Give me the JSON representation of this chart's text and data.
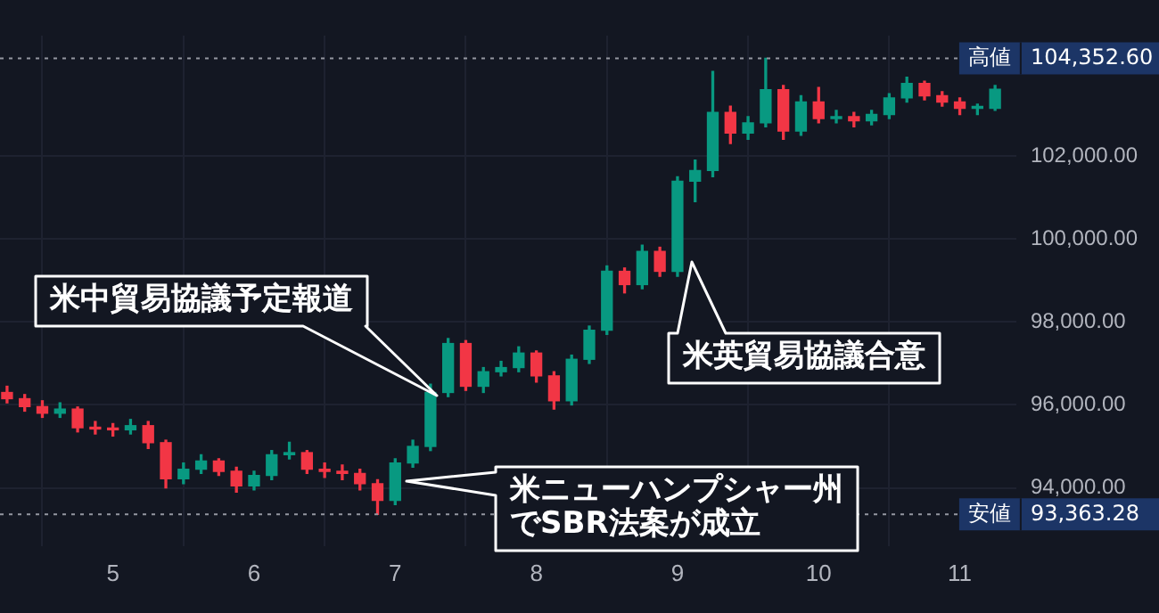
{
  "chart_data": {
    "type": "candlestick",
    "x": [
      4.25,
      4.375,
      4.5,
      4.625,
      4.75,
      4.875,
      5,
      5.125,
      5.25,
      5.375,
      5.5,
      5.625,
      5.75,
      5.875,
      6,
      6.125,
      6.25,
      6.375,
      6.5,
      6.625,
      6.75,
      6.875,
      7,
      7.125,
      7.25,
      7.375,
      7.5,
      7.625,
      7.75,
      7.875,
      8,
      8.125,
      8.25,
      8.375,
      8.5,
      8.625,
      8.75,
      8.875,
      9,
      9.125,
      9.25,
      9.375,
      9.5,
      9.625,
      9.75,
      9.875,
      10,
      10.125,
      10.25,
      10.375,
      10.5,
      10.625,
      10.75,
      10.875,
      11,
      11.125,
      11.25
    ],
    "ohlc": [
      [
        96300,
        96450,
        96050,
        96150
      ],
      [
        96150,
        96250,
        95850,
        95960
      ],
      [
        95960,
        96100,
        95700,
        95800
      ],
      [
        95800,
        96050,
        95700,
        95900
      ],
      [
        95900,
        95950,
        95350,
        95450
      ],
      [
        95450,
        95600,
        95300,
        95420
      ],
      [
        95420,
        95550,
        95250,
        95400
      ],
      [
        95400,
        95650,
        95300,
        95500
      ],
      [
        95500,
        95600,
        94950,
        95090
      ],
      [
        95090,
        95150,
        94000,
        94220
      ],
      [
        94220,
        94600,
        94100,
        94450
      ],
      [
        94450,
        94800,
        94350,
        94650
      ],
      [
        94650,
        94700,
        94300,
        94400
      ],
      [
        94400,
        94500,
        93900,
        94050
      ],
      [
        94050,
        94400,
        93950,
        94300
      ],
      [
        94300,
        94900,
        94200,
        94800
      ],
      [
        94800,
        95100,
        94700,
        94850
      ],
      [
        94850,
        94900,
        94350,
        94450
      ],
      [
        94450,
        94600,
        94250,
        94400
      ],
      [
        94400,
        94550,
        94200,
        94350
      ],
      [
        94350,
        94450,
        93950,
        94100
      ],
      [
        94100,
        94200,
        93363.28,
        93700
      ],
      [
        93700,
        94700,
        93600,
        94600
      ],
      [
        94600,
        95150,
        94500,
        95000
      ],
      [
        95000,
        96500,
        94900,
        96300
      ],
      [
        96300,
        97600,
        96200,
        97480
      ],
      [
        97480,
        97550,
        96350,
        96450
      ],
      [
        96450,
        96900,
        96300,
        96800
      ],
      [
        96800,
        97050,
        96700,
        96900
      ],
      [
        96900,
        97400,
        96800,
        97250
      ],
      [
        97250,
        97300,
        96550,
        96700
      ],
      [
        96700,
        96800,
        95900,
        96100
      ],
      [
        96100,
        97200,
        96000,
        97100
      ],
      [
        97100,
        97900,
        97000,
        97800
      ],
      [
        97800,
        99350,
        97700,
        99220
      ],
      [
        99220,
        99300,
        98700,
        98900
      ],
      [
        98900,
        99850,
        98800,
        99700
      ],
      [
        99700,
        99800,
        99100,
        99220
      ],
      [
        99220,
        101500,
        99100,
        101390
      ],
      [
        101390,
        101900,
        100900,
        101650
      ],
      [
        101650,
        104040,
        101500,
        103050
      ],
      [
        103050,
        103200,
        102300,
        102550
      ],
      [
        102550,
        102950,
        102400,
        102800
      ],
      [
        102800,
        104352.6,
        102700,
        103600
      ],
      [
        103600,
        103700,
        102400,
        102600
      ],
      [
        102600,
        103450,
        102500,
        103300
      ],
      [
        103300,
        103650,
        102800,
        102900
      ],
      [
        102900,
        103100,
        102800,
        102950
      ],
      [
        102950,
        103050,
        102700,
        102850
      ],
      [
        102850,
        103100,
        102750,
        103000
      ],
      [
        103000,
        103500,
        102900,
        103400
      ],
      [
        103400,
        103900,
        103300,
        103750
      ],
      [
        103750,
        103800,
        103350,
        103450
      ],
      [
        103450,
        103550,
        103200,
        103300
      ],
      [
        103300,
        103400,
        103000,
        103150
      ],
      [
        103150,
        103250,
        103000,
        103150
      ],
      [
        103150,
        103700,
        103100,
        103610
      ]
    ],
    "xlim": [
      4.2,
      11.4
    ],
    "xticks": [
      5,
      6,
      7,
      8,
      9,
      10,
      11
    ],
    "ylim": [
      92600,
      104900
    ],
    "yticks": [
      {
        "value": 94000,
        "label": "94,000.00"
      },
      {
        "value": 96000,
        "label": "96,000.00"
      },
      {
        "value": 98000,
        "label": "98,000.00"
      },
      {
        "value": 100000,
        "label": "100,000.00"
      },
      {
        "value": 102000,
        "label": "102,000.00"
      }
    ],
    "grid": true,
    "ref_lines": [
      {
        "axis": "y",
        "value": 104352.6,
        "label": "高値 104,352.60"
      },
      {
        "axis": "y",
        "value": 93363.28,
        "label": "安値 93,363.28"
      }
    ],
    "annotations": [
      "米中貿易協議予定報道",
      "米英貿易協議合意",
      "米ニューハンプシャー州でSBR法案が成立"
    ]
  }
}
